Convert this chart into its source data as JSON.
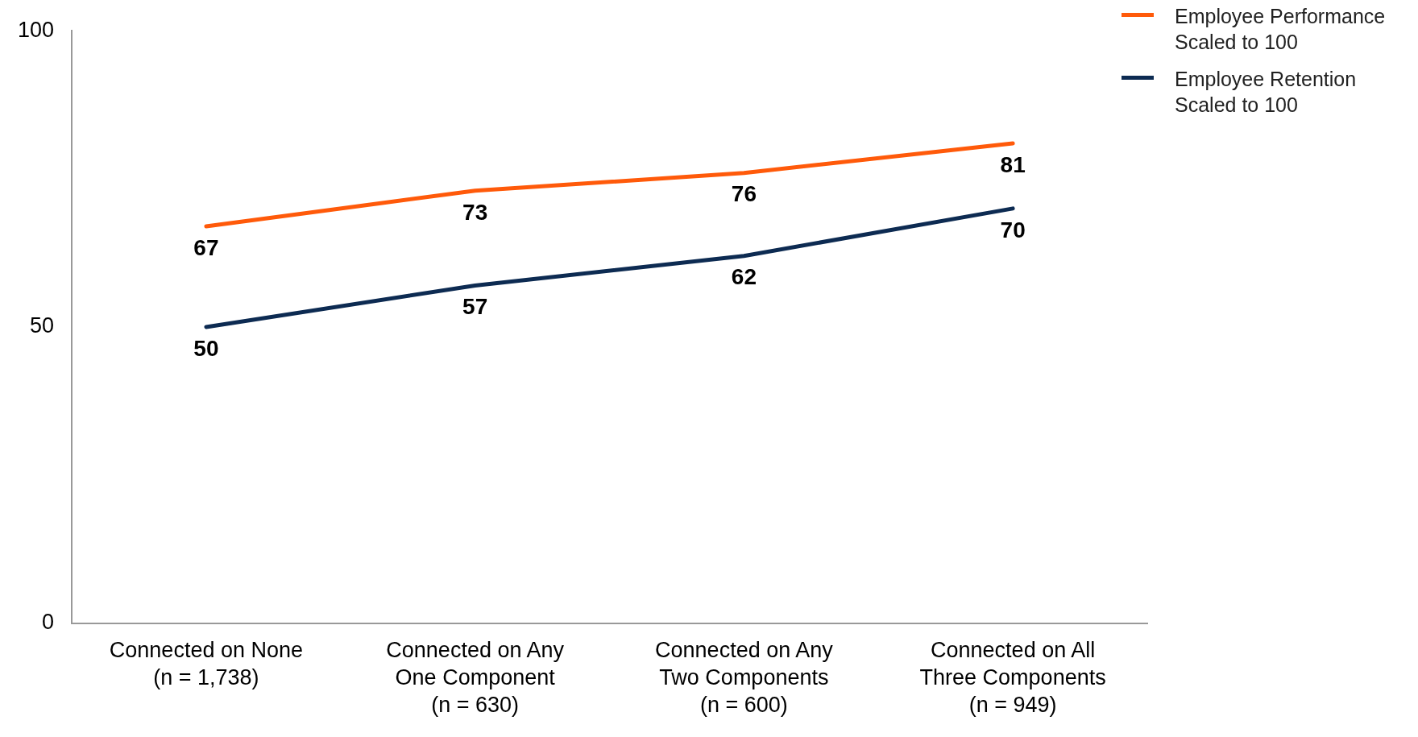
{
  "chart_data": {
    "type": "line",
    "categories": [
      "Connected on None\n(n = 1,738)",
      "Connected on Any\nOne Component\n(n = 630)",
      "Connected on Any\nTwo Components\n(n = 600)",
      "Connected on All\nThree Components\n(n = 949)"
    ],
    "series": [
      {
        "name": "Employee Performance\nScaled to 100",
        "color": "#ff5a0a",
        "values": [
          67,
          73,
          76,
          81
        ]
      },
      {
        "name": "Employee Retention\nScaled to 100",
        "color": "#0d2b52",
        "values": [
          50,
          57,
          62,
          70
        ]
      }
    ],
    "ylim": [
      0,
      100
    ],
    "yticks": [
      0,
      50,
      100
    ],
    "grid": false,
    "legend": "top right",
    "data_labels": true,
    "marker": "none",
    "line_style": "solid"
  }
}
